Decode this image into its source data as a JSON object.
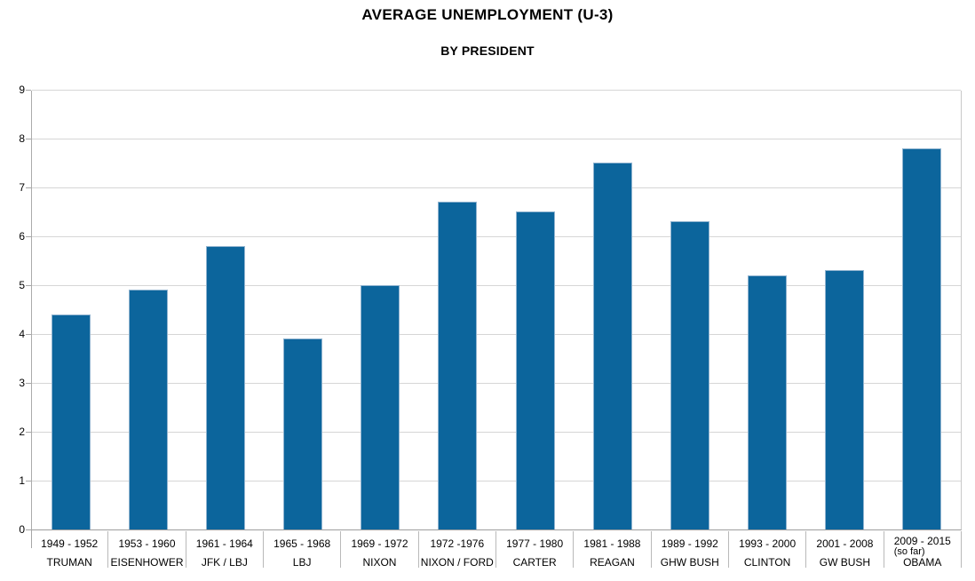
{
  "chart_data": {
    "type": "bar",
    "title": "AVERAGE UNEMPLOYMENT (U-3)",
    "subtitle": "BY PRESIDENT",
    "categories": [
      {
        "years": "1949 - 1952",
        "note": "",
        "president": "TRUMAN"
      },
      {
        "years": "1953 - 1960",
        "note": "",
        "president": "EISENHOWER"
      },
      {
        "years": "1961 - 1964",
        "note": "",
        "president": "JFK / LBJ"
      },
      {
        "years": "1965 - 1968",
        "note": "",
        "president": "LBJ"
      },
      {
        "years": "1969 - 1972",
        "note": "",
        "president": "NIXON"
      },
      {
        "years": "1972 -1976",
        "note": "",
        "president": "NIXON / FORD"
      },
      {
        "years": "1977 - 1980",
        "note": "",
        "president": "CARTER"
      },
      {
        "years": "1981 - 1988",
        "note": "",
        "president": "REAGAN"
      },
      {
        "years": "1989 - 1992",
        "note": "",
        "president": "GHW BUSH"
      },
      {
        "years": "1993 - 2000",
        "note": "",
        "president": "CLINTON"
      },
      {
        "years": "2001 - 2008",
        "note": "",
        "president": "GW BUSH"
      },
      {
        "years": "2009 - 2015",
        "note": "(so far)",
        "president": "OBAMA"
      }
    ],
    "values": [
      4.4,
      4.9,
      5.8,
      3.9,
      5.0,
      6.7,
      6.5,
      7.5,
      6.3,
      5.2,
      5.3,
      7.8
    ],
    "ylim": [
      0,
      9
    ],
    "yticks": [
      0,
      1,
      2,
      3,
      4,
      5,
      6,
      7,
      8,
      9
    ],
    "grid": true,
    "legend": null,
    "xlabel": "",
    "ylabel": "",
    "colors": {
      "bar_fill": "#0c659c",
      "bar_edge": "#91b4d0",
      "gridline": "#d6d6d6",
      "axis": "#a6a6a6",
      "separator": "#b9b9b9",
      "text": "#000000",
      "background": "#ffffff"
    }
  }
}
